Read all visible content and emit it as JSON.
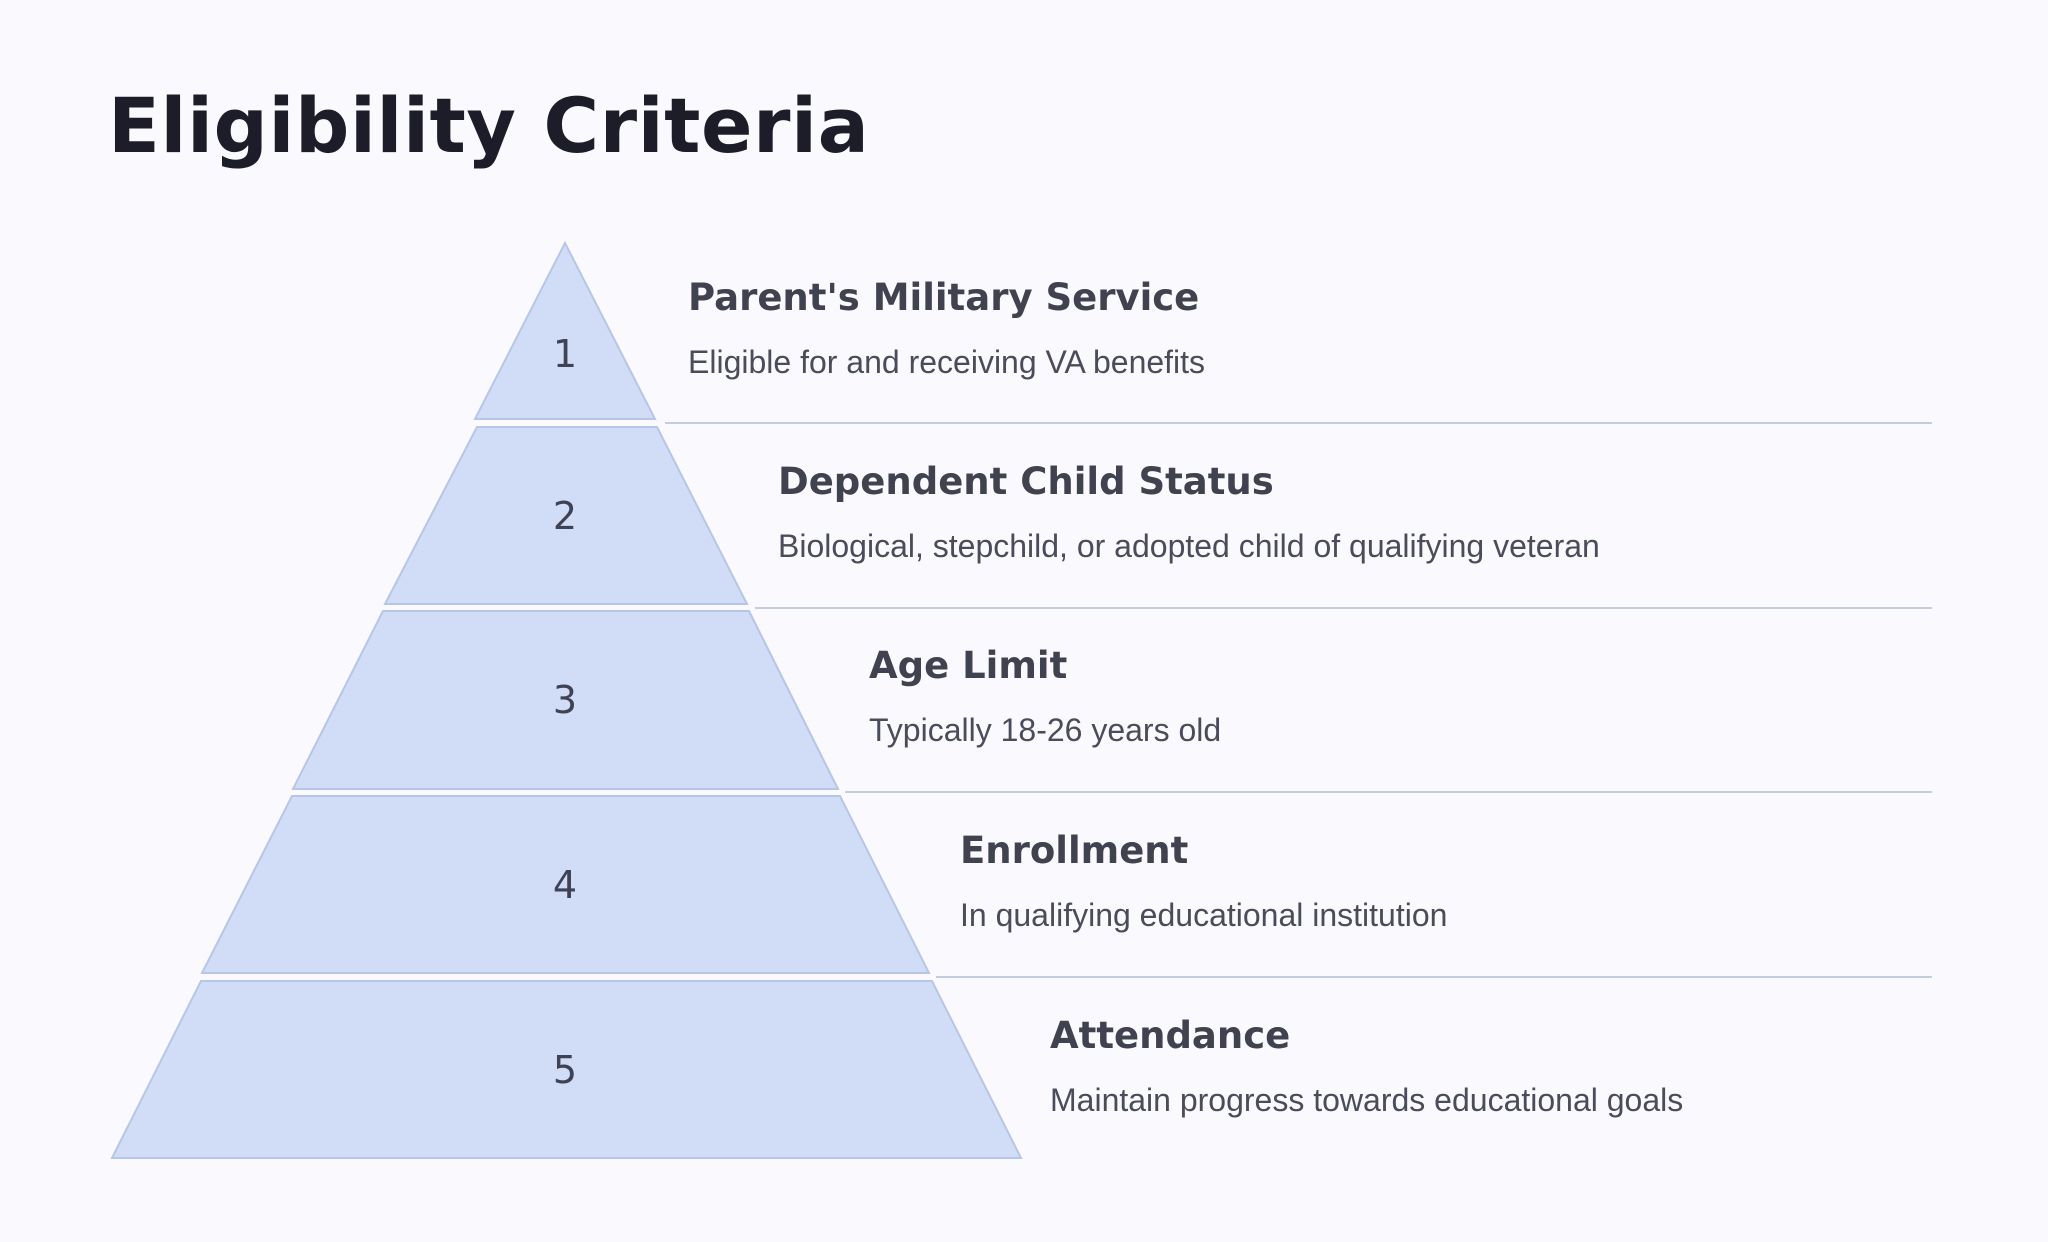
{
  "title": "Eligibility Criteria",
  "colors": {
    "background": "#f9f9fe",
    "tier_fill": "#d1dcf7",
    "tier_stroke": "#b7c6e6",
    "divider": "#c3cce0",
    "title_text": "#1d1d2a",
    "body_text": "#41424f"
  },
  "tiers": [
    {
      "number": "1",
      "heading": "Parent's Military Service",
      "description": "Eligible for and receiving VA benefits"
    },
    {
      "number": "2",
      "heading": "Dependent Child Status",
      "description": "Biological, stepchild, or adopted child of qualifying veteran"
    },
    {
      "number": "3",
      "heading": "Age Limit",
      "description": "Typically 18-26 years old"
    },
    {
      "number": "4",
      "heading": "Enrollment",
      "description": "In qualifying educational institution"
    },
    {
      "number": "5",
      "heading": "Attendance",
      "description": "Maintain progress towards educational goals"
    }
  ]
}
